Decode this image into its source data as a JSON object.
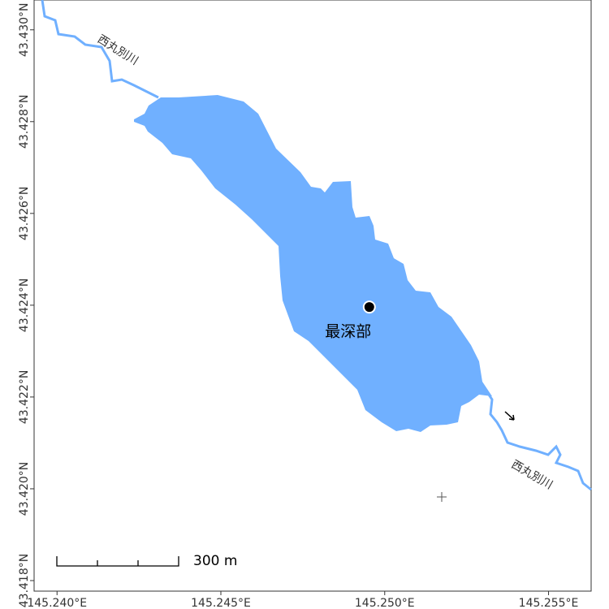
{
  "map": {
    "xlim": [
      145.2393,
      145.2563
    ],
    "ylim": [
      43.41777,
      43.43065
    ],
    "xticks": [
      {
        "value": 145.24,
        "label": "145.240°E"
      },
      {
        "value": 145.245,
        "label": "145.245°E"
      },
      {
        "value": 145.25,
        "label": "145.250°E"
      },
      {
        "value": 145.255,
        "label": "145.255°E"
      }
    ],
    "yticks": [
      {
        "value": 43.418,
        "label": "43.418°N"
      },
      {
        "value": 43.42,
        "label": "43.420°N"
      },
      {
        "value": 43.422,
        "label": "43.422°N"
      },
      {
        "value": 43.424,
        "label": "43.424°N"
      },
      {
        "value": 43.426,
        "label": "43.426°N"
      },
      {
        "value": 43.428,
        "label": "43.428°N"
      },
      {
        "value": 43.43,
        "label": "43.430°N"
      }
    ],
    "river_labels": [
      "西丸別川",
      "西丸別川"
    ],
    "deepest_point": {
      "label": "最深部",
      "lon": 145.24953,
      "lat": 43.42396
    },
    "scale_bar": "300 m"
  }
}
